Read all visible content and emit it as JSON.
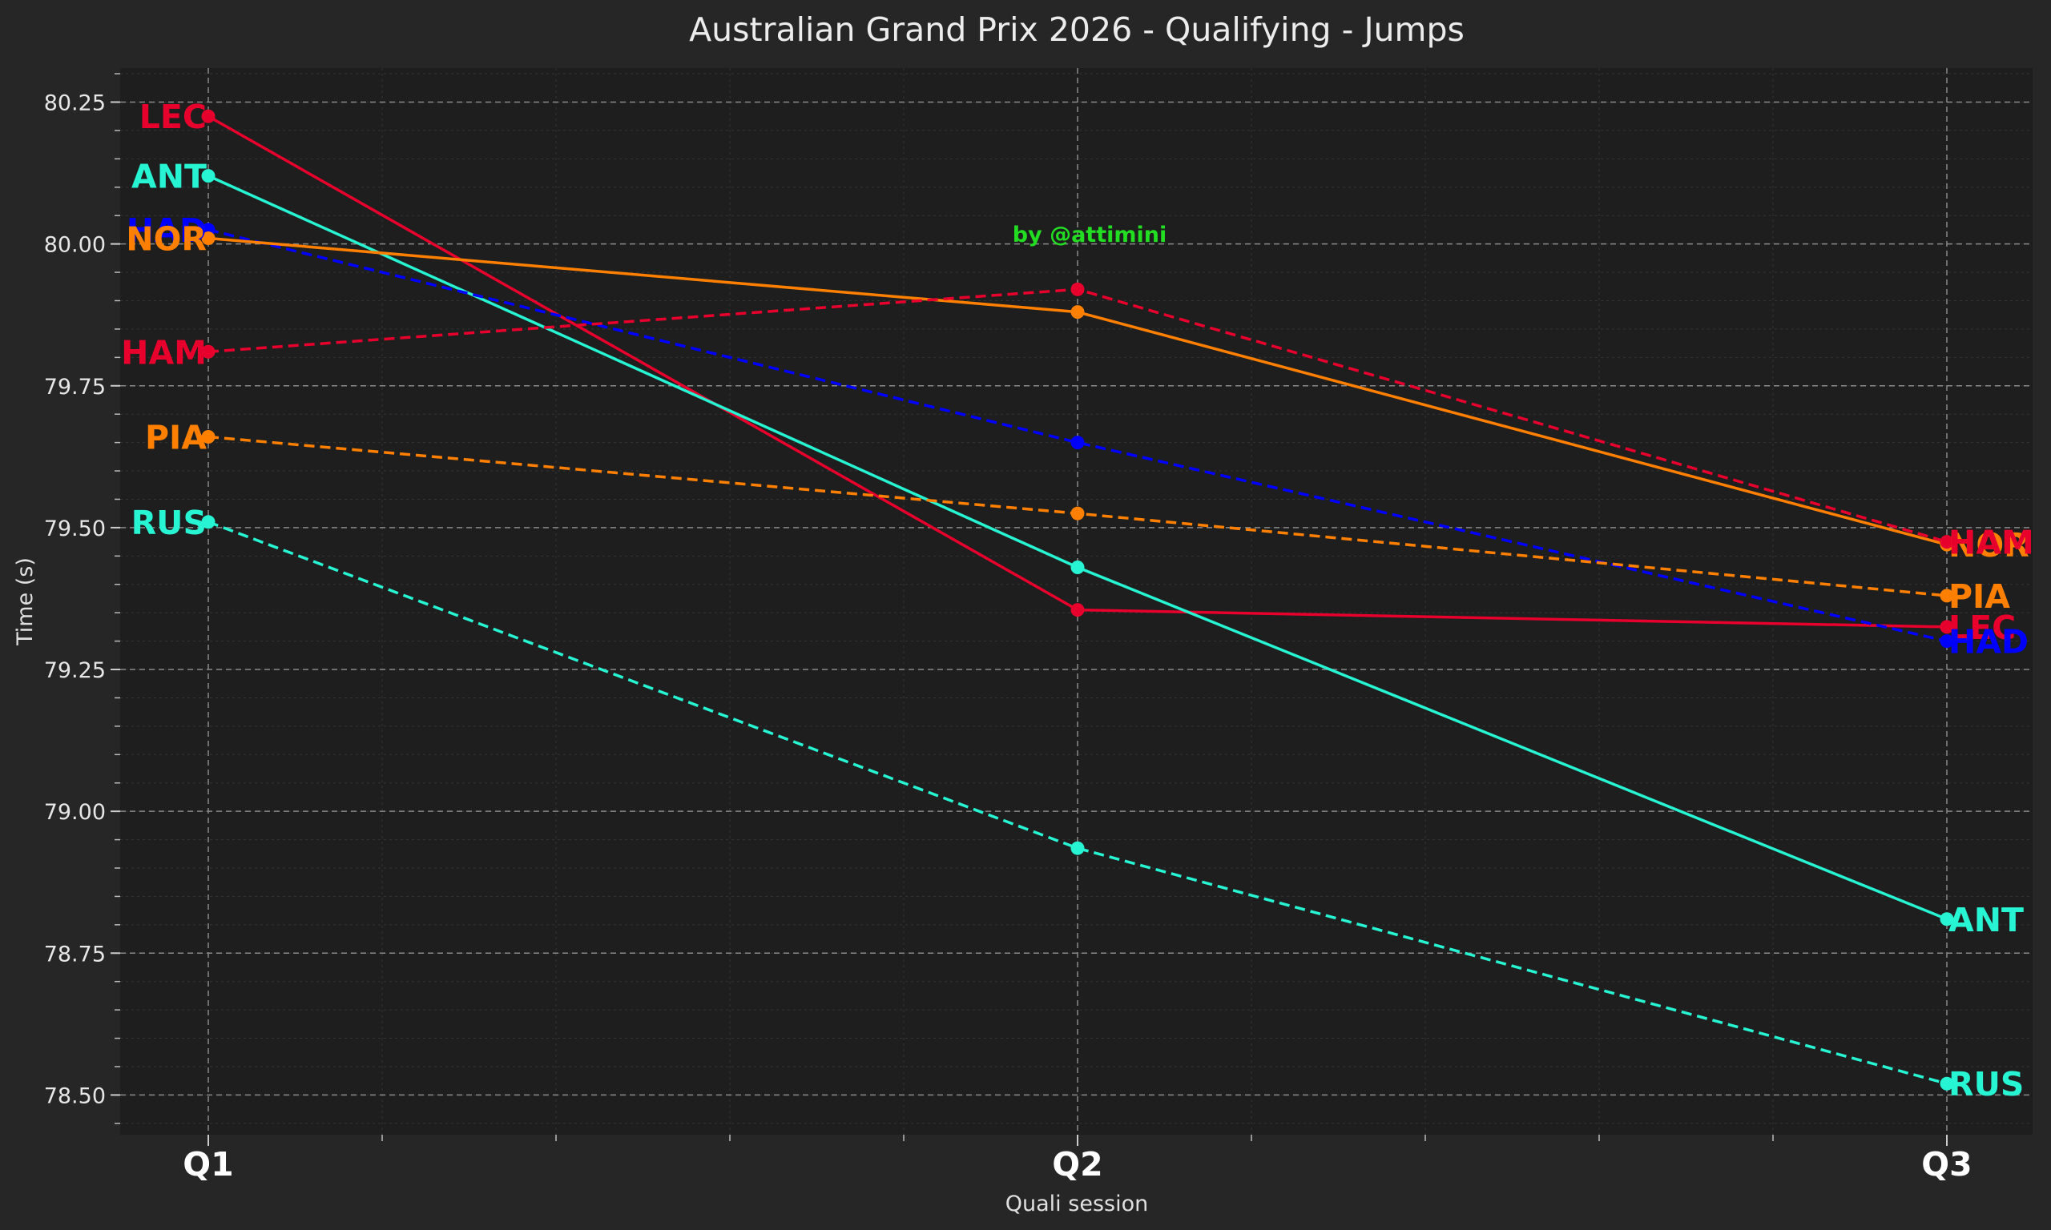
{
  "chart_data": {
    "type": "line",
    "title": "Australian Grand Prix 2026 - Qualifying - Jumps",
    "xlabel": "Quali session",
    "ylabel": "Time (s)",
    "annotation": "by @attimini",
    "categories": [
      "Q1",
      "Q2",
      "Q3"
    ],
    "ylim": [
      78.43,
      80.31
    ],
    "yticks": [
      "78.50",
      "78.75",
      "79.00",
      "79.25",
      "79.50",
      "79.75",
      "80.00",
      "80.25"
    ],
    "grid": true,
    "series": [
      {
        "name": "LEC",
        "color": "#E8002D",
        "dashed": false,
        "values": [
          80.225,
          79.355,
          79.325
        ]
      },
      {
        "name": "ANT",
        "color": "#27F4D2",
        "dashed": false,
        "values": [
          80.12,
          79.43,
          78.81
        ]
      },
      {
        "name": "HAD",
        "color": "#0000FF",
        "dashed": true,
        "values": [
          80.025,
          79.65,
          79.3
        ]
      },
      {
        "name": "NOR",
        "color": "#FF8000",
        "dashed": false,
        "values": [
          80.01,
          79.88,
          79.47
        ]
      },
      {
        "name": "HAM",
        "color": "#E8002D",
        "dashed": true,
        "values": [
          79.81,
          79.92,
          79.475
        ]
      },
      {
        "name": "PIA",
        "color": "#FF8000",
        "dashed": true,
        "values": [
          79.66,
          79.525,
          79.38
        ]
      },
      {
        "name": "RUS",
        "color": "#27F4D2",
        "dashed": true,
        "values": [
          79.51,
          78.935,
          78.52
        ]
      }
    ]
  }
}
